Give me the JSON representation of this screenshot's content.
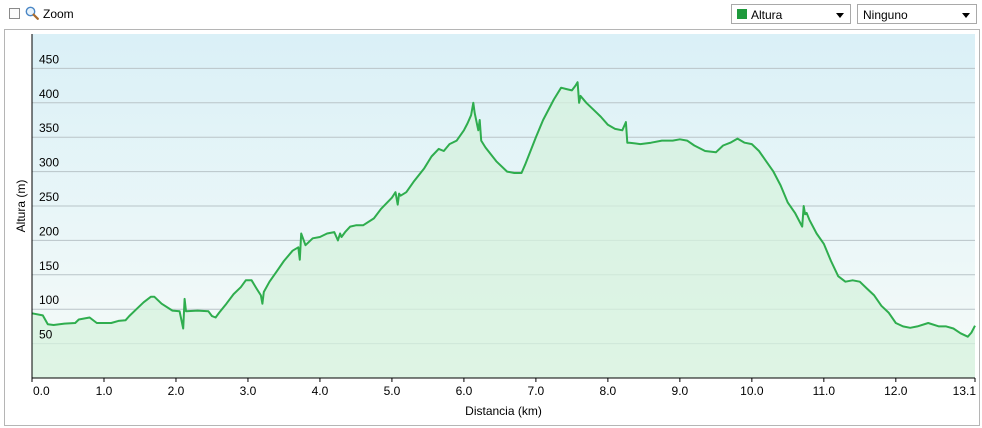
{
  "toolbar": {
    "zoom_label": "Zoom",
    "zoom_checked": false,
    "zoom_icon": "magnifier-icon",
    "series_select": {
      "value": "Altura",
      "color": "#1e9a3c"
    },
    "compare_select": {
      "value": "Ninguno"
    }
  },
  "chart_data": {
    "type": "area",
    "title": "",
    "xlabel": "Distancia  (km)",
    "ylabel": "Altura (m)",
    "xlim": [
      0,
      13.1
    ],
    "ylim": [
      0,
      500
    ],
    "x_ticks": [
      0,
      1,
      2,
      3,
      4,
      5,
      6,
      7,
      8,
      9,
      10,
      11,
      12,
      13.1
    ],
    "x_tick_labels": [
      "0.0",
      "1.0",
      "2.0",
      "3.0",
      "4.0",
      "5.0",
      "6.0",
      "7.0",
      "8.0",
      "9.0",
      "10.0",
      "11.0",
      "12.0",
      "13.1"
    ],
    "y_ticks": [
      50,
      100,
      150,
      200,
      250,
      300,
      350,
      400,
      450
    ],
    "y_tick_labels": [
      "50",
      "100",
      "150",
      "200",
      "250",
      "300",
      "350",
      "400",
      "450"
    ],
    "grid": true,
    "line_color": "#2fad4e",
    "fill_color": "#d6f2de",
    "background_gradient": [
      "#daf0f7",
      "#f6fbf8"
    ],
    "series": [
      {
        "name": "Altura",
        "x": [
          0,
          0.15,
          0.22,
          0.3,
          0.45,
          0.6,
          0.65,
          0.8,
          0.9,
          1.1,
          1.2,
          1.3,
          1.35,
          1.45,
          1.55,
          1.65,
          1.7,
          1.8,
          1.95,
          2.05,
          2.1,
          2.12,
          2.14,
          2.3,
          2.45,
          2.5,
          2.55,
          2.6,
          2.7,
          2.8,
          2.9,
          2.97,
          3.05,
          3.12,
          3.18,
          3.2,
          3.22,
          3.3,
          3.4,
          3.5,
          3.62,
          3.7,
          3.72,
          3.74,
          3.8,
          3.9,
          4.0,
          4.1,
          4.2,
          4.25,
          4.28,
          4.3,
          4.35,
          4.42,
          4.5,
          4.6,
          4.75,
          4.85,
          5.0,
          5.05,
          5.08,
          5.1,
          5.12,
          5.2,
          5.3,
          5.45,
          5.55,
          5.65,
          5.72,
          5.8,
          5.9,
          6.0,
          6.05,
          6.1,
          6.13,
          6.15,
          6.2,
          6.22,
          6.24,
          6.3,
          6.45,
          6.6,
          6.7,
          6.8,
          6.85,
          7.0,
          7.1,
          7.25,
          7.35,
          7.42,
          7.5,
          7.55,
          7.58,
          7.6,
          7.62,
          7.7,
          7.8,
          7.9,
          8.0,
          8.1,
          8.2,
          8.25,
          8.27,
          8.3,
          8.45,
          8.6,
          8.75,
          8.9,
          9.0,
          9.1,
          9.2,
          9.35,
          9.5,
          9.6,
          9.7,
          9.8,
          9.9,
          10.0,
          10.1,
          10.2,
          10.3,
          10.4,
          10.5,
          10.6,
          10.7,
          10.72,
          10.74,
          10.76,
          10.8,
          10.9,
          11.0,
          11.1,
          11.2,
          11.3,
          11.4,
          11.5,
          11.6,
          11.7,
          11.8,
          11.9,
          12.0,
          12.1,
          12.2,
          12.3,
          12.45,
          12.6,
          12.7,
          12.8,
          12.9,
          13.0,
          13.05,
          13.1
        ],
        "y": [
          94,
          91,
          78,
          77,
          79,
          80,
          85,
          88,
          80,
          80,
          83,
          84,
          90,
          100,
          110,
          118,
          118,
          108,
          98,
          97,
          72,
          115,
          97,
          98,
          97,
          90,
          88,
          95,
          108,
          122,
          132,
          142,
          142,
          130,
          120,
          108,
          125,
          140,
          155,
          170,
          185,
          190,
          172,
          210,
          193,
          203,
          205,
          210,
          212,
          200,
          210,
          205,
          212,
          220,
          222,
          222,
          232,
          246,
          262,
          270,
          252,
          268,
          265,
          270,
          285,
          305,
          322,
          333,
          330,
          340,
          345,
          360,
          370,
          382,
          400,
          385,
          360,
          375,
          345,
          335,
          315,
          300,
          298,
          298,
          310,
          350,
          375,
          405,
          422,
          420,
          418,
          425,
          430,
          400,
          410,
          400,
          390,
          380,
          368,
          362,
          360,
          372,
          342,
          342,
          340,
          342,
          345,
          345,
          347,
          345,
          338,
          330,
          328,
          338,
          342,
          348,
          342,
          340,
          330,
          315,
          300,
          280,
          255,
          240,
          220,
          250,
          238,
          240,
          230,
          210,
          195,
          170,
          148,
          140,
          142,
          140,
          130,
          120,
          105,
          95,
          80,
          75,
          73,
          75,
          80,
          75,
          75,
          72,
          65,
          60,
          66,
          76
        ]
      }
    ]
  }
}
